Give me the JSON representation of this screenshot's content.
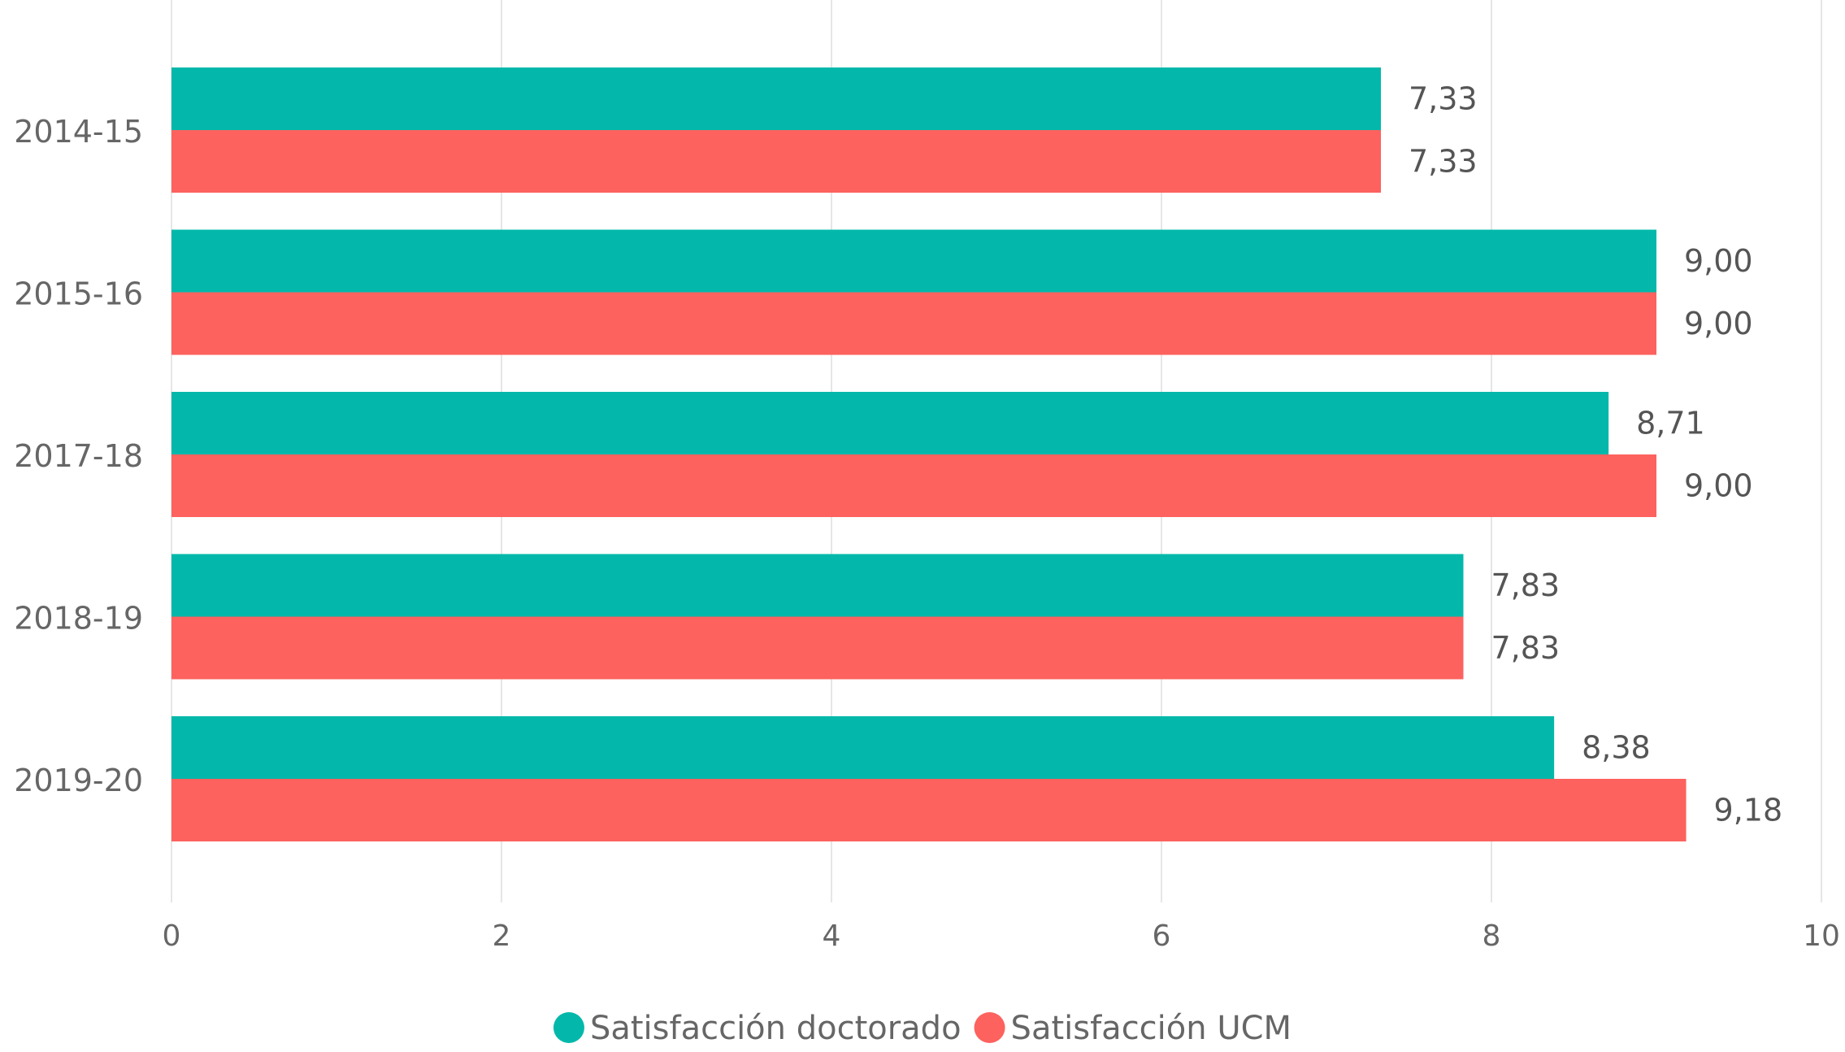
{
  "chart_data": {
    "type": "bar",
    "orientation": "horizontal",
    "categories": [
      "2014-15",
      "2015-16",
      "2017-18",
      "2018-19",
      "2019-20"
    ],
    "series": [
      {
        "name": "Satisfacción doctorado",
        "color": "#03B8AA",
        "values": [
          7.33,
          9.0,
          8.71,
          7.83,
          8.38
        ],
        "labels": [
          "7,33",
          "9,00",
          "8,71",
          "7,83",
          "8,38"
        ]
      },
      {
        "name": "Satisfacción UCM",
        "color": "#FD625E",
        "values": [
          7.33,
          9.0,
          9.0,
          7.83,
          9.18
        ],
        "labels": [
          "7,33",
          "9,00",
          "9,00",
          "7,83",
          "9,18"
        ]
      }
    ],
    "xlim": [
      0,
      10
    ],
    "xticks": [
      0,
      2,
      4,
      6,
      8,
      10
    ],
    "xtick_labels": [
      "0",
      "2",
      "4",
      "6",
      "8",
      "10"
    ],
    "grid": true,
    "legend_position": "bottom-center",
    "colors": {
      "grid": "#E6E6E6",
      "axis_text": "#666666",
      "data_label": "#555555"
    }
  }
}
